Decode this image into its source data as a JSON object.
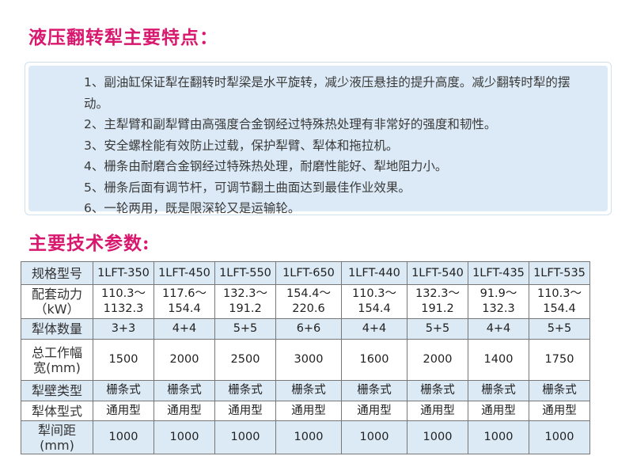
{
  "features_title": "液压翻转犁主要特点：",
  "features": [
    "1、副油缸保证犁在翻转时犁梁是水平旋转，减少液压悬挂的提升高度。减少翻转时犁的摆动。",
    "2、主犁臂和副犁臂由高强度合金钢经过特殊热处理有非常好的强度和韧性。",
    "3、安全螺栓能有效防止过载，保护犁臂、犁体和拖拉机。",
    "4、栅条由耐磨合金钢经过特殊热处理，耐磨性能好、犁地阻力小。",
    "5、栅条后面有调节杆，可调节翻土曲面达到最佳作业效果。",
    "6、一轮两用，既是限深轮又是运输轮。"
  ],
  "specs_title": "主要技术参数:",
  "table": {
    "rows": [
      {
        "label": "规格型号",
        "values": [
          "1LFT-350",
          "1LFT-450",
          "1LFT-550",
          "1LFT-650",
          "1LFT-440",
          "1LFT-540",
          "1LFT-435",
          "1LFT-535"
        ]
      },
      {
        "label": "配套动力（kW）",
        "values": [
          "110.3～1132.3",
          "117.6～154.4",
          "132.3～191.2",
          "154.4～220.6",
          "110.3～154.4",
          "132.3～191.2",
          "91.9～132.3",
          "110.3～154.4"
        ]
      },
      {
        "label": "犁体数量",
        "values": [
          "3+3",
          "4+4",
          "5+5",
          "6+6",
          "4+4",
          "5+5",
          "4+4",
          "5+5"
        ]
      },
      {
        "label": "总工作幅宽(mm)",
        "values": [
          "1500",
          "2000",
          "2500",
          "3000",
          "1600",
          "2000",
          "1400",
          "1750"
        ]
      },
      {
        "label": "犁壁类型",
        "values": [
          "栅条式",
          "栅条式",
          "栅条式",
          "栅条式",
          "栅条式",
          "栅条式",
          "栅条式",
          "栅条式"
        ]
      },
      {
        "label": "犁体型式",
        "values": [
          "通用型",
          "通用型",
          "通用型",
          "通用型",
          "通用型",
          "通用型",
          "通用型",
          "通用型"
        ]
      },
      {
        "label": "犁间距(mm)",
        "values": [
          "1000",
          "1000",
          "1000",
          "1000",
          "1000",
          "1000",
          "1000",
          "1000"
        ]
      }
    ]
  },
  "colors": {
    "title": "#d8176e",
    "box": "#dbeaf6",
    "shade": "#dceaf6"
  }
}
